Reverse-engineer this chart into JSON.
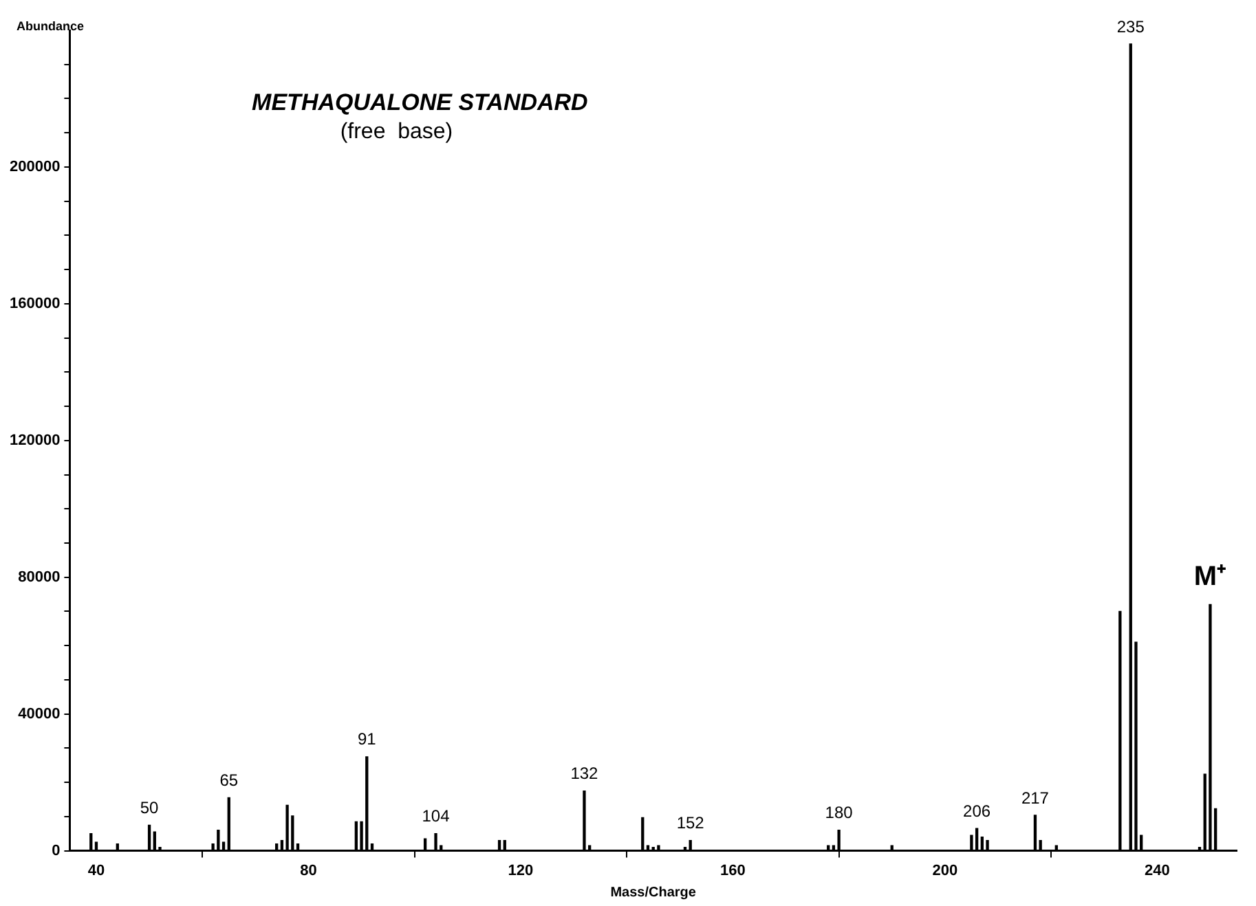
{
  "chart_data": {
    "type": "bar",
    "title": "METHAQUALONE STANDARD",
    "subtitle": "(free  base)",
    "xlabel": "Mass/Charge",
    "ylabel": "Abundance",
    "x": [
      39,
      40,
      44,
      50,
      51,
      52,
      62,
      63,
      64,
      65,
      74,
      75,
      76,
      77,
      78,
      89,
      90,
      91,
      92,
      102,
      104,
      105,
      116,
      117,
      132,
      133,
      143,
      144,
      145,
      146,
      151,
      152,
      178,
      179,
      180,
      190,
      205,
      206,
      207,
      208,
      217,
      218,
      221,
      233,
      235,
      236,
      237,
      248,
      249,
      250,
      251
    ],
    "series": [
      {
        "color": "#000000",
        "values": [
          5000,
          2500,
          2000,
          7500,
          5500,
          1000,
          2000,
          6000,
          2500,
          15500,
          2000,
          3000,
          13300,
          10200,
          2000,
          8500,
          8500,
          27500,
          2000,
          3500,
          5000,
          1500,
          3000,
          3000,
          17500,
          1500,
          9700,
          1500,
          1000,
          1500,
          1000,
          3000,
          1500,
          1500,
          6000,
          1500,
          4500,
          6500,
          4000,
          3000,
          10400,
          3000,
          1500,
          70000,
          236000,
          61000,
          4500,
          1000,
          22400,
          72000,
          12300
        ]
      }
    ],
    "xlim": [
      35,
      255
    ],
    "ylim": [
      0,
      240000
    ],
    "xticks": [
      40,
      80,
      120,
      160,
      200,
      240
    ],
    "yticks": [
      0,
      {
        "value": 10000,
        "label": null
      },
      {
        "value": 20000,
        "label": null
      },
      {
        "value": 30000,
        "label": null
      },
      40000,
      {
        "value": 50000,
        "label": null
      },
      {
        "value": 60000,
        "label": null
      },
      {
        "value": 70000,
        "label": null
      },
      80000,
      {
        "value": 90000,
        "label": null
      },
      {
        "value": 100000,
        "label": null
      },
      {
        "value": 110000,
        "label": null
      },
      120000,
      {
        "value": 130000,
        "label": null
      },
      {
        "value": 140000,
        "label": null
      },
      {
        "value": 150000,
        "label": null
      },
      160000,
      {
        "value": 170000,
        "label": null
      },
      {
        "value": 180000,
        "label": null
      },
      {
        "value": 190000,
        "label": null
      },
      200000,
      {
        "value": 210000,
        "label": null
      },
      {
        "value": 220000,
        "label": null
      },
      {
        "value": 230000,
        "label": null
      }
    ],
    "annotations": [
      {
        "text": "50",
        "x": 50,
        "y": 7500
      },
      {
        "text": "65",
        "x": 65,
        "y": 15500
      },
      {
        "text": "91",
        "x": 91,
        "y": 27500
      },
      {
        "text": "104",
        "x": 104,
        "y": 5000
      },
      {
        "text": "132",
        "x": 132,
        "y": 17500
      },
      {
        "text": "152",
        "x": 152,
        "y": 3000
      },
      {
        "text": "180",
        "x": 180,
        "y": 6000
      },
      {
        "text": "206",
        "x": 206,
        "y": 6500
      },
      {
        "text": "217",
        "x": 217,
        "y": 10400
      },
      {
        "text": "235",
        "x": 235,
        "y": 236000
      },
      {
        "text": "M⁺",
        "x": 250,
        "y": 72000
      }
    ],
    "grid": false,
    "legend": false
  }
}
